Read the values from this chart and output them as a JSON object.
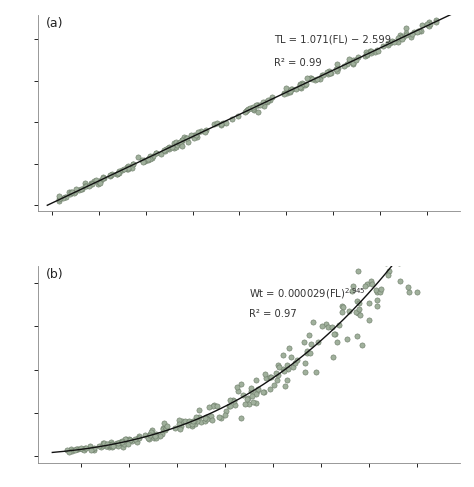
{
  "panel_a": {
    "label": "(a)",
    "slope": 1.071,
    "intercept": -2.599,
    "eq_line1": "TL = 1.071(FL) − 2.599",
    "eq_line2": "R² = 0.99"
  },
  "panel_b": {
    "label": "(b)",
    "a": 2.9e-05,
    "b": 2.945,
    "eq_line2": "R² = 0.97"
  },
  "scatter_color": "#a0b09c",
  "scatter_edge": "#6a7a66",
  "line_color": "#111111",
  "fig_bg": "#ffffff",
  "axes_bg": "#ffffff"
}
